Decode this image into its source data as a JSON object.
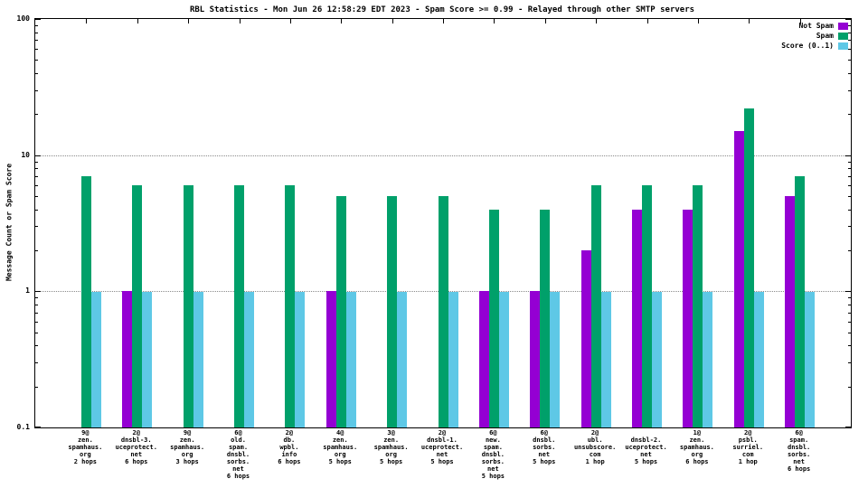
{
  "title": "RBL Statistics - Mon Jun 26 12:58:29 EDT 2023 - Spam Score >= 0.99 - Relayed through other SMTP servers",
  "ylabel": "Message Count or Spam Score",
  "legend_position": "top-right",
  "colors": {
    "not_spam": "#9400d3",
    "spam": "#00a06a",
    "score": "#5ec8e6",
    "grid": "#8a8a8a"
  },
  "chart_data": {
    "type": "bar",
    "log_scale_y": true,
    "ylim": [
      0.1,
      100
    ],
    "yticks": [
      0.1,
      1,
      10,
      100
    ],
    "grid": true,
    "title": "RBL Statistics - Mon Jun 26 12:58:29 EDT 2023 - Spam Score >= 0.99 - Relayed through other SMTP servers",
    "xlabel": "",
    "ylabel": "Message Count or Spam Score",
    "categories": [
      [
        "9@",
        "zen.",
        "spamhaus.",
        "org",
        "2 hops"
      ],
      [
        "2@",
        "dnsbl-3.",
        "uceprotect.",
        "net",
        "6 hops"
      ],
      [
        "9@",
        "zen.",
        "spamhaus.",
        "org",
        "3 hops"
      ],
      [
        "6@",
        "old.",
        "spam.",
        "dnsbl.",
        "sorbs.",
        "net",
        "6 hops"
      ],
      [
        "2@",
        "db.",
        "wpbl.",
        "info",
        "6 hops"
      ],
      [
        "4@",
        "zen.",
        "spamhaus.",
        "org",
        "5 hops"
      ],
      [
        "3@",
        "zen.",
        "spamhaus.",
        "org",
        "5 hops"
      ],
      [
        "2@",
        "dnsbl-1.",
        "uceprotect.",
        "net",
        "5 hops"
      ],
      [
        "6@",
        "new.",
        "spam.",
        "dnsbl.",
        "sorbs.",
        "net",
        "5 hops"
      ],
      [
        "6@",
        "dnsbl.",
        "sorbs.",
        "net",
        "5 hops"
      ],
      [
        "2@",
        "ubl.",
        "unsubscore.",
        "com",
        "1 hop"
      ],
      [
        "",
        "dnsbl-2.",
        "uceprotect.",
        "net",
        "5 hops"
      ],
      [
        "1@",
        "zen.",
        "spamhaus.",
        "org",
        "6 hops"
      ],
      [
        "2@",
        "psbl.",
        "surriel.",
        "com",
        "1 hop"
      ],
      [
        "6@",
        "spam.",
        "dnsbl.",
        "sorbs.",
        "net",
        "6 hops"
      ]
    ],
    "series": [
      {
        "name": "Not Spam",
        "color": "#9400d3",
        "values": [
          0,
          1,
          0,
          0,
          0,
          1,
          0,
          0,
          1,
          1,
          2,
          4,
          4,
          15,
          5
        ]
      },
      {
        "name": "Spam",
        "color": "#00a06a",
        "values": [
          7,
          6,
          6,
          6,
          6,
          5,
          5,
          5,
          4,
          4,
          6,
          6,
          6,
          22,
          7
        ]
      },
      {
        "name": "Score (0..1)",
        "color": "#5ec8e6",
        "values": [
          0.99,
          0.99,
          0.99,
          0.99,
          0.99,
          0.99,
          0.99,
          0.99,
          0.99,
          0.99,
          0.99,
          0.99,
          0.99,
          0.99,
          0.99
        ]
      }
    ]
  }
}
